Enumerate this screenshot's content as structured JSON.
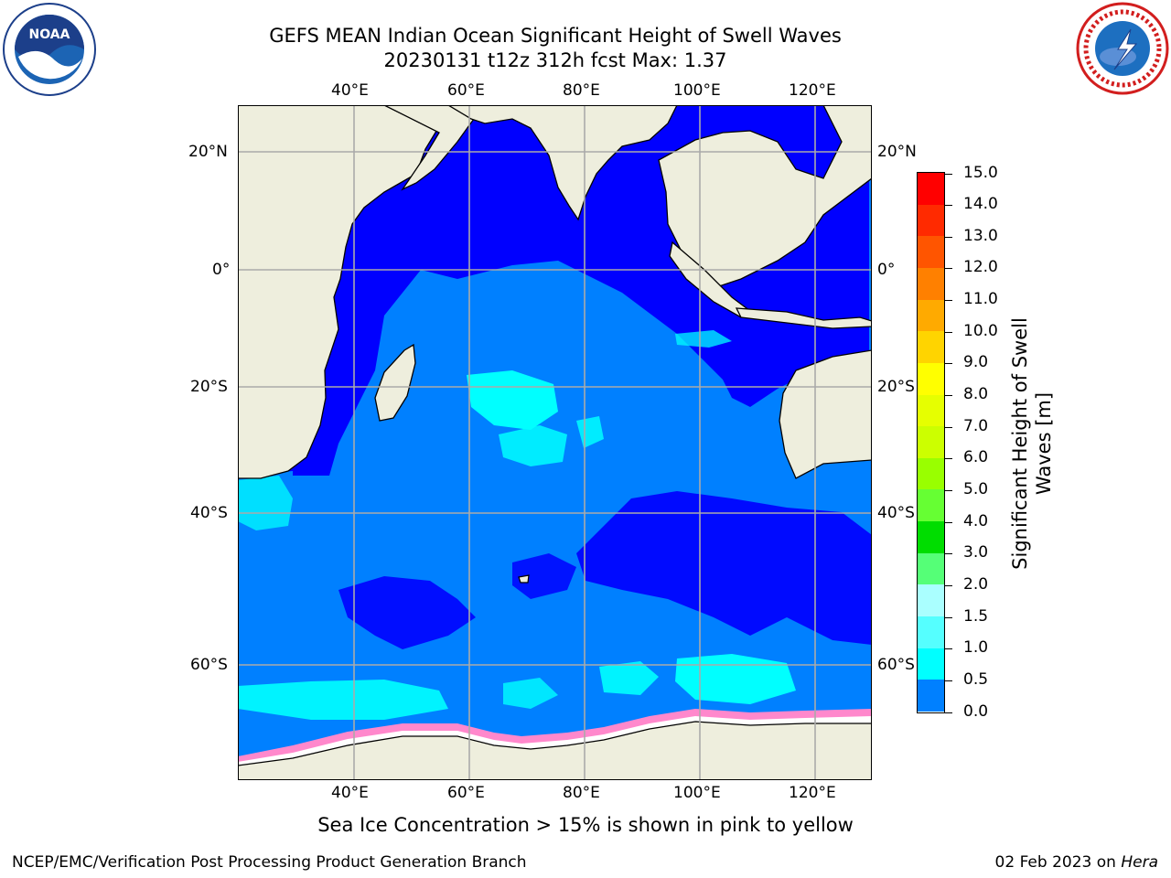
{
  "title_line1": "GEFS MEAN Indian Ocean Significant Height of Swell Waves",
  "title_line2": "20230131 t12z 312h fcst   Max: 1.37",
  "logos": {
    "left": "NOAA",
    "right": "NATIONAL WEATHER SERVICE"
  },
  "map": {
    "lon_ticks_top": [
      "40°E",
      "60°E",
      "80°E",
      "100°E",
      "120°E"
    ],
    "lon_ticks_bottom": [
      "40°E",
      "60°E",
      "80°E",
      "100°E",
      "120°E"
    ],
    "lat_ticks_left": [
      "20°N",
      "0°",
      "20°S",
      "40°S",
      "60°S"
    ],
    "lat_ticks_right": [
      "20°N",
      "0°",
      "20°S",
      "40°S",
      "60°S"
    ],
    "colors": {
      "ocean_low": "#0000ff",
      "ocean_mid": "#0080ff",
      "ocean_high": "#00ffff",
      "land": "#eeeedd",
      "grid": "#aaaaaa",
      "ice": "#ff66cc"
    }
  },
  "colorbar": {
    "title": "Significant Height of Swell Waves [m]",
    "labels": [
      "15.0",
      "14.0",
      "13.0",
      "12.0",
      "11.0",
      "10.0",
      "9.0",
      "8.0",
      "7.0",
      "6.0",
      "5.0",
      "4.0",
      "3.0",
      "2.0",
      "1.5",
      "1.0",
      "0.5",
      "0.0"
    ],
    "colors": [
      "#ff0000",
      "#ff2a00",
      "#ff5500",
      "#ff8000",
      "#ffaa00",
      "#ffd400",
      "#ffff00",
      "#e6ff00",
      "#ccff00",
      "#99ff00",
      "#66ff33",
      "#00dd00",
      "#55ff77",
      "#aaffff",
      "#55ffff",
      "#00ffff",
      "#0080ff",
      "#0000ff"
    ]
  },
  "caption": "Sea Ice Concentration > 15% is shown in pink to yellow",
  "footer_left": "NCEP/EMC/Verification Post Processing Product Generation Branch",
  "footer_right_date": "02 Feb 2023 on",
  "footer_right_machine": "Hera"
}
